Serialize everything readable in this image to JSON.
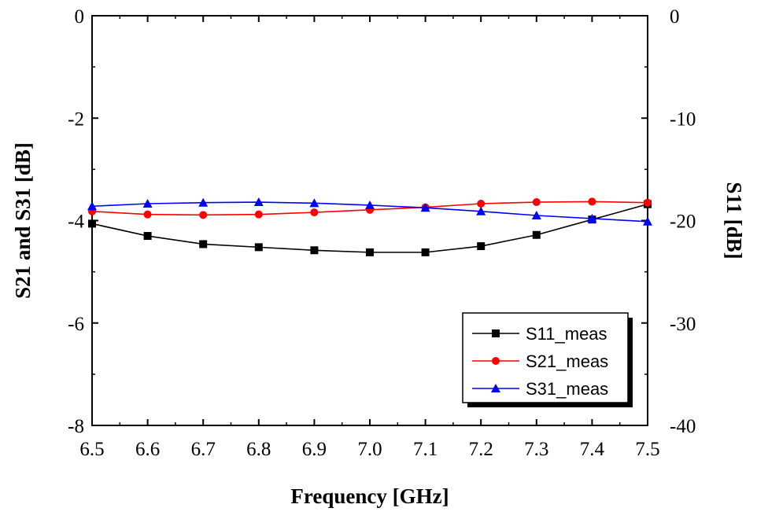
{
  "chart_data": {
    "type": "line",
    "xlabel": "Frequency [GHz]",
    "ylabel_left": "S21 and S31 [dB]",
    "ylabel_right": "S11 [dB]",
    "xlim": [
      6.5,
      7.5
    ],
    "ylim_left": [
      -8,
      0
    ],
    "ylim_right": [
      -40,
      0
    ],
    "x_ticks": [
      "6.5",
      "6.6",
      "6.7",
      "6.8",
      "6.9",
      "7.0",
      "7.1",
      "7.2",
      "7.3",
      "7.4",
      "7.5"
    ],
    "y_ticks_left": [
      "0",
      "-2",
      "-4",
      "-6",
      "-8"
    ],
    "y_ticks_right": [
      "0",
      "-10",
      "-20",
      "-30",
      "-40"
    ],
    "x": [
      6.5,
      6.6,
      6.7,
      6.8,
      6.9,
      7.0,
      7.1,
      7.2,
      7.3,
      7.4,
      7.5
    ],
    "series": [
      {
        "name": "S11_meas",
        "axis": "right",
        "color": "#000000",
        "marker": "square",
        "values": [
          -20.3,
          -21.5,
          -22.3,
          -22.6,
          -22.9,
          -23.1,
          -23.1,
          -22.5,
          -21.4,
          -19.9,
          -18.4
        ]
      },
      {
        "name": "S21_meas",
        "axis": "left",
        "color": "#ff0000",
        "marker": "circle",
        "values": [
          -3.82,
          -3.88,
          -3.89,
          -3.88,
          -3.84,
          -3.79,
          -3.74,
          -3.67,
          -3.64,
          -3.63,
          -3.65
        ]
      },
      {
        "name": "S31_meas",
        "axis": "left",
        "color": "#0000ff",
        "marker": "triangle",
        "values": [
          -3.72,
          -3.67,
          -3.65,
          -3.64,
          -3.66,
          -3.7,
          -3.75,
          -3.82,
          -3.9,
          -3.96,
          -4.02
        ]
      }
    ],
    "legend": {
      "placement": "bottom-right",
      "shadow": true
    },
    "grid": false
  }
}
